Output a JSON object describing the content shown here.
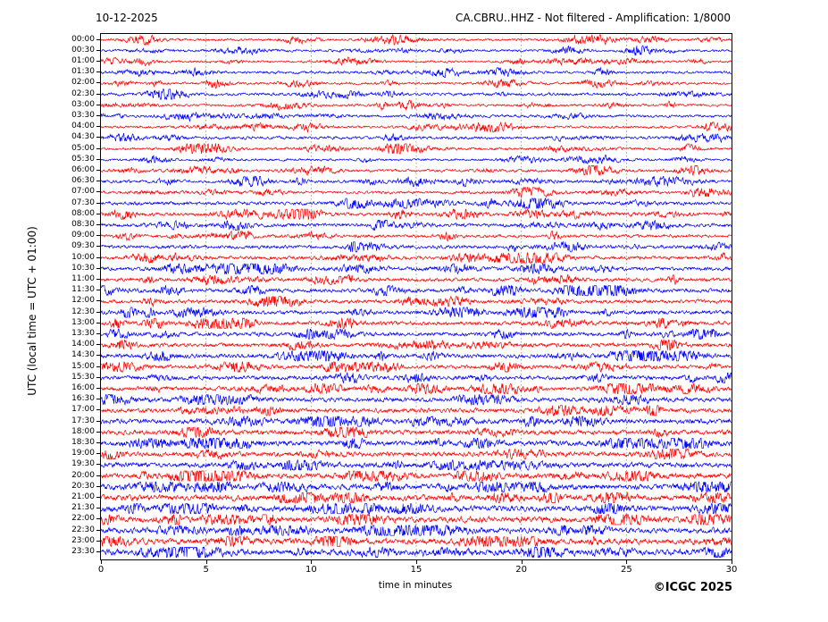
{
  "header": {
    "date": "10-12-2025",
    "title": "CA.CBRU..HHZ - Not filtered - Amplification: 1/8000"
  },
  "axes": {
    "x_label": "time in minutes",
    "y_label": "UTC (local time = UTC + 01:00)",
    "x_ticks": [
      0,
      5,
      10,
      15,
      20,
      25,
      30
    ],
    "grid_minutes": [
      5,
      10,
      15,
      20,
      25
    ],
    "xlim": [
      0,
      30
    ]
  },
  "footer": {
    "copyright": "©ICGC 2025"
  },
  "colors": {
    "trace_red": "#ff0000",
    "trace_blue": "#0000ff",
    "grid": "#8a8a8a",
    "axis": "#000000",
    "background": "#ffffff"
  },
  "chart_data": {
    "type": "line",
    "title": "CA.CBRU..HHZ - Not filtered - Amplification: 1/8000",
    "subtitle": "10-12-2025",
    "xlabel": "time in minutes",
    "ylabel": "UTC (local time = UTC + 01:00)",
    "xlim": [
      0,
      30
    ],
    "x_ticks": [
      0,
      5,
      10,
      15,
      20,
      25,
      30
    ],
    "grid": "vertical-dotted-at-5-minute-intervals",
    "legend": "none",
    "description": "Helicorder day plot: 48 half-hour seismic traces, alternating red/blue, amplitude is relative noise level read from the plot (0-1)",
    "rows": [
      {
        "label": "00:00",
        "color": "red",
        "amplitude": 0.26
      },
      {
        "label": "00:30",
        "color": "blue",
        "amplitude": 0.28
      },
      {
        "label": "01:00",
        "color": "red",
        "amplitude": 0.26
      },
      {
        "label": "01:30",
        "color": "blue",
        "amplitude": 0.3
      },
      {
        "label": "02:00",
        "color": "red",
        "amplitude": 0.28
      },
      {
        "label": "02:30",
        "color": "blue",
        "amplitude": 0.33
      },
      {
        "label": "03:00",
        "color": "red",
        "amplitude": 0.28
      },
      {
        "label": "03:30",
        "color": "blue",
        "amplitude": 0.3
      },
      {
        "label": "04:00",
        "color": "red",
        "amplitude": 0.29
      },
      {
        "label": "04:30",
        "color": "blue",
        "amplitude": 0.34
      },
      {
        "label": "05:00",
        "color": "red",
        "amplitude": 0.3
      },
      {
        "label": "05:30",
        "color": "blue",
        "amplitude": 0.26
      },
      {
        "label": "06:00",
        "color": "red",
        "amplitude": 0.32
      },
      {
        "label": "06:30",
        "color": "blue",
        "amplitude": 0.34
      },
      {
        "label": "07:00",
        "color": "red",
        "amplitude": 0.33
      },
      {
        "label": "07:30",
        "color": "blue",
        "amplitude": 0.4
      },
      {
        "label": "08:00",
        "color": "red",
        "amplitude": 0.38
      },
      {
        "label": "08:30",
        "color": "blue",
        "amplitude": 0.4
      },
      {
        "label": "09:00",
        "color": "red",
        "amplitude": 0.36
      },
      {
        "label": "09:30",
        "color": "blue",
        "amplitude": 0.4
      },
      {
        "label": "10:00",
        "color": "red",
        "amplitude": 0.4
      },
      {
        "label": "10:30",
        "color": "blue",
        "amplitude": 0.42
      },
      {
        "label": "11:00",
        "color": "red",
        "amplitude": 0.4
      },
      {
        "label": "11:30",
        "color": "blue",
        "amplitude": 0.44
      },
      {
        "label": "12:00",
        "color": "red",
        "amplitude": 0.42
      },
      {
        "label": "12:30",
        "color": "blue",
        "amplitude": 0.44
      },
      {
        "label": "13:00",
        "color": "red",
        "amplitude": 0.44
      },
      {
        "label": "13:30",
        "color": "blue",
        "amplitude": 0.45
      },
      {
        "label": "14:00",
        "color": "red",
        "amplitude": 0.46
      },
      {
        "label": "14:30",
        "color": "blue",
        "amplitude": 0.48
      },
      {
        "label": "15:00",
        "color": "red",
        "amplitude": 0.44
      },
      {
        "label": "15:30",
        "color": "blue",
        "amplitude": 0.46
      },
      {
        "label": "16:00",
        "color": "red",
        "amplitude": 0.48
      },
      {
        "label": "16:30",
        "color": "blue",
        "amplitude": 0.48
      },
      {
        "label": "17:00",
        "color": "red",
        "amplitude": 0.5
      },
      {
        "label": "17:30",
        "color": "blue",
        "amplitude": 0.55
      },
      {
        "label": "18:00",
        "color": "red",
        "amplitude": 0.52
      },
      {
        "label": "18:30",
        "color": "blue",
        "amplitude": 0.55
      },
      {
        "label": "19:00",
        "color": "red",
        "amplitude": 0.53
      },
      {
        "label": "19:30",
        "color": "blue",
        "amplitude": 0.57
      },
      {
        "label": "20:00",
        "color": "red",
        "amplitude": 0.57
      },
      {
        "label": "20:30",
        "color": "blue",
        "amplitude": 0.62
      },
      {
        "label": "21:00",
        "color": "red",
        "amplitude": 0.62
      },
      {
        "label": "21:30",
        "color": "blue",
        "amplitude": 0.66
      },
      {
        "label": "22:00",
        "color": "red",
        "amplitude": 0.66
      },
      {
        "label": "22:30",
        "color": "blue",
        "amplitude": 0.62
      },
      {
        "label": "23:00",
        "color": "red",
        "amplitude": 0.64
      },
      {
        "label": "23:30",
        "color": "blue",
        "amplitude": 0.7
      }
    ]
  }
}
